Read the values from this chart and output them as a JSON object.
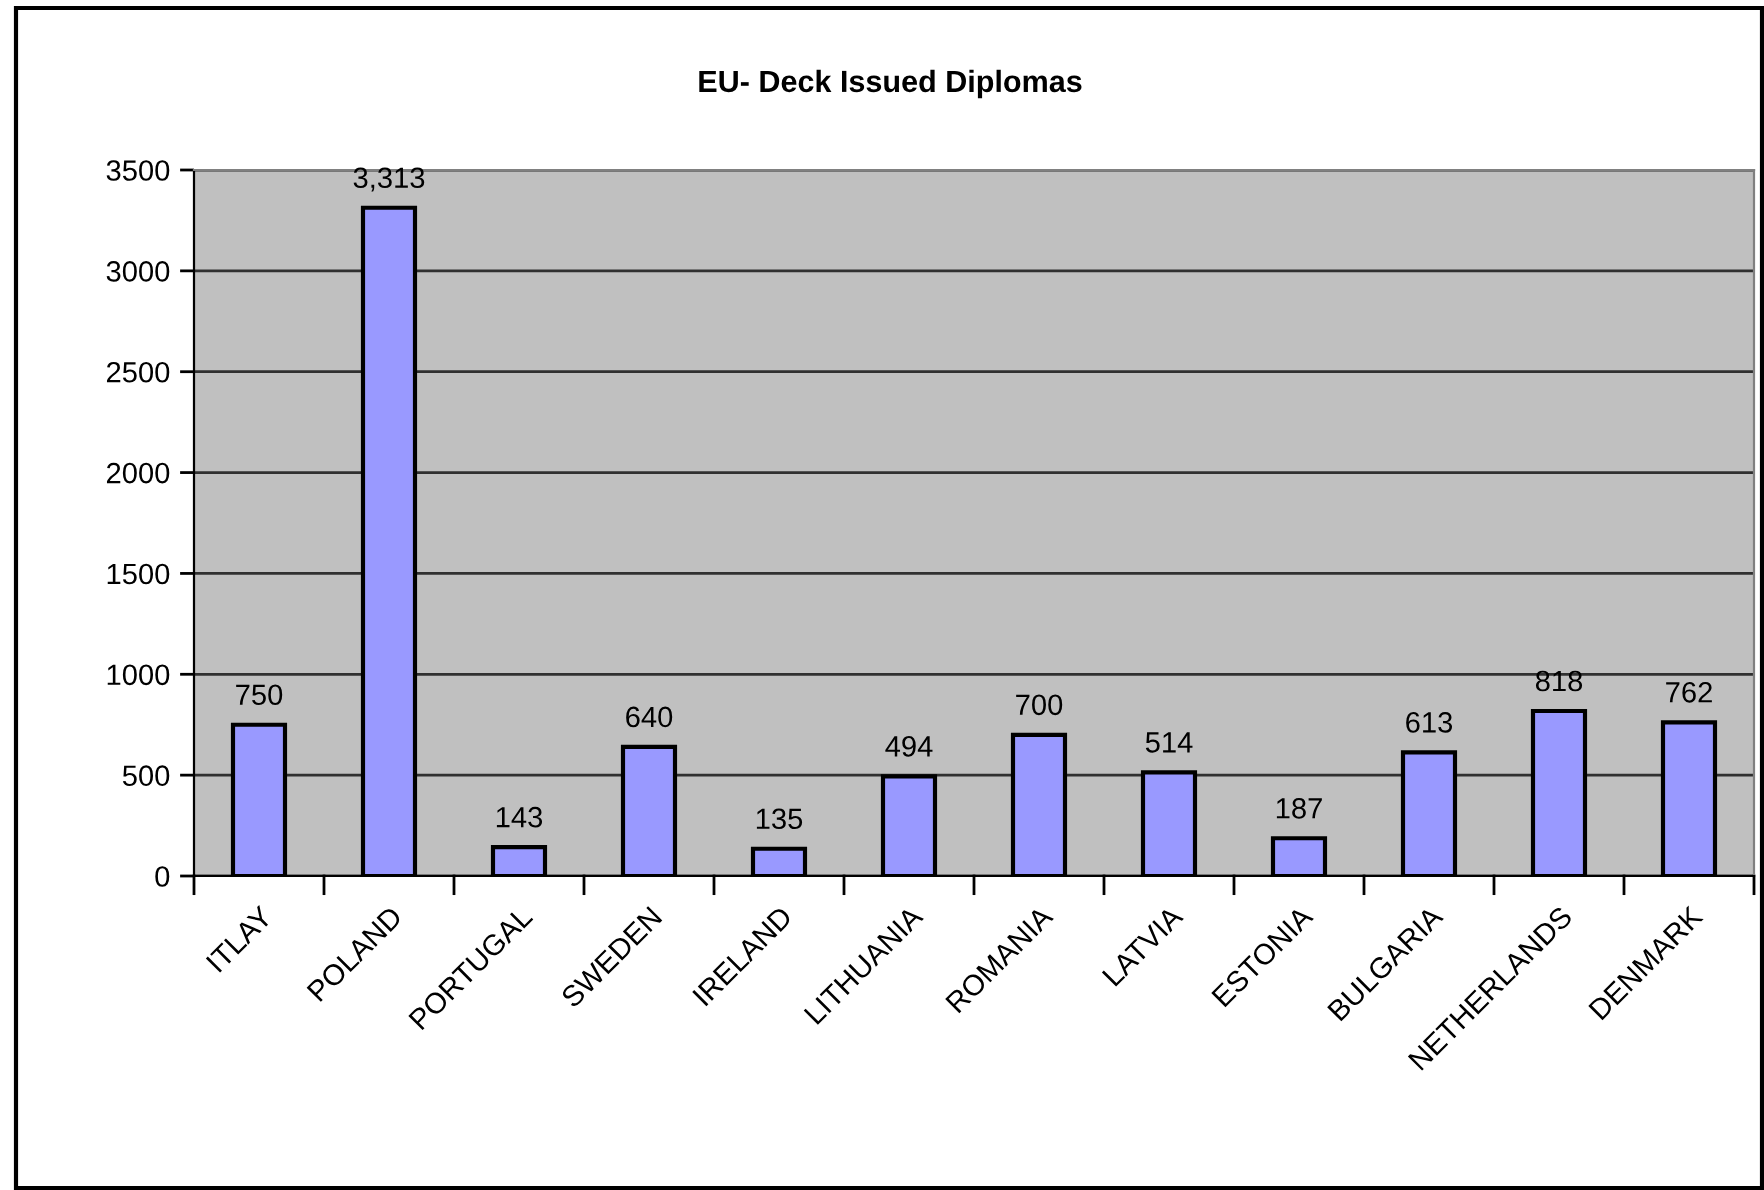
{
  "chart_data": {
    "type": "bar",
    "title": "EU- Deck Issued Diplomas",
    "categories": [
      "ITLAY",
      "POLAND",
      "PORTUGAL",
      "SWEDEN",
      "IRELAND",
      "LITHUANIA",
      "ROMANIA",
      "LATVIA",
      "ESTONIA",
      "BULGARIA",
      "NETHERLANDS",
      "DENMARK"
    ],
    "values": [
      750,
      3313,
      143,
      640,
      135,
      494,
      700,
      514,
      187,
      613,
      818,
      762
    ],
    "value_labels": [
      "750",
      "3,313",
      "143",
      "640",
      "135",
      "494",
      "700",
      "514",
      "187",
      "613",
      "818",
      "762"
    ],
    "color": "#9999ff",
    "ylim": [
      0,
      3500
    ],
    "yticks": [
      0,
      500,
      1000,
      1500,
      2000,
      2500,
      3000,
      3500
    ],
    "grid": "y"
  }
}
